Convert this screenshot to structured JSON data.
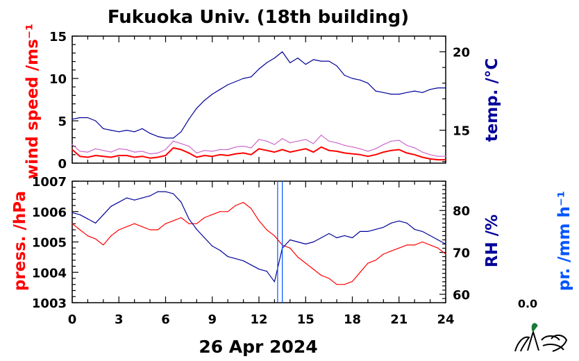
{
  "title": "Fukuoka Univ. (18th building)",
  "date_label": "26 Apr 2024",
  "precip_total": "0.0",
  "colors": {
    "wind": "#ff0000",
    "wind_gust": "#cc66cc",
    "temp": "#000099",
    "press": "#ff0000",
    "rh": "#000099",
    "precip": "#0055ff",
    "axis": "#000000"
  },
  "chart_data": [
    {
      "type": "line",
      "panel": "upper",
      "ylabel": "wind speed /ms⁻¹",
      "y2label": "temp. /°C",
      "ylim": [
        0,
        15
      ],
      "y_ticks": [
        "0",
        "5",
        "10",
        "15"
      ],
      "y2lim": [
        12.9,
        21.0
      ],
      "y2_ticks": [
        "15",
        "20"
      ],
      "xlim": [
        0,
        24
      ],
      "series": [
        {
          "axis": "left",
          "x": [
            0,
            0.5,
            1,
            1.5,
            2,
            2.5,
            3,
            3.5,
            4,
            4.5,
            5,
            5.5,
            6,
            6.5,
            7,
            7.5,
            8,
            8.5,
            9,
            9.5,
            10,
            10.5,
            11,
            11.5,
            12,
            12.5,
            13,
            13.5,
            14,
            14.5,
            15,
            15.5,
            16,
            16.5,
            17,
            17.5,
            18,
            18.5,
            19,
            19.5,
            20,
            20.5,
            21,
            21.5,
            22,
            22.5,
            23,
            23.5,
            24
          ],
          "values": [
            1.6,
            0.8,
            0.7,
            0.9,
            0.8,
            0.7,
            0.9,
            0.9,
            0.7,
            0.8,
            0.6,
            0.7,
            0.9,
            1.8,
            1.6,
            1.2,
            0.7,
            0.9,
            0.8,
            1.0,
            0.9,
            1.1,
            1.2,
            1.0,
            1.7,
            1.5,
            1.3,
            1.6,
            1.3,
            1.5,
            1.7,
            1.3,
            1.9,
            1.5,
            1.4,
            1.2,
            1.1,
            1.0,
            0.8,
            1.0,
            1.3,
            1.5,
            1.6,
            1.2,
            1.0,
            0.7,
            0.5,
            0.4,
            0.4
          ]
        },
        {
          "axis": "left",
          "x": [
            0,
            0.5,
            1,
            1.5,
            2,
            2.5,
            3,
            3.5,
            4,
            4.5,
            5,
            5.5,
            6,
            6.5,
            7,
            7.5,
            8,
            8.5,
            9,
            9.5,
            10,
            10.5,
            11,
            11.5,
            12,
            12.5,
            13,
            13.5,
            14,
            14.5,
            15,
            15.5,
            16,
            16.5,
            17,
            17.5,
            18,
            18.5,
            19,
            19.5,
            20,
            20.5,
            21,
            21.5,
            22,
            22.5,
            23,
            23.5,
            24
          ],
          "values": [
            2.2,
            1.4,
            1.3,
            1.7,
            1.5,
            1.3,
            1.7,
            1.6,
            1.3,
            1.4,
            1.1,
            1.2,
            1.6,
            2.6,
            2.3,
            2.0,
            1.2,
            1.5,
            1.4,
            1.6,
            1.6,
            1.9,
            2.0,
            1.8,
            2.8,
            2.6,
            2.2,
            2.9,
            2.4,
            2.6,
            2.8,
            2.3,
            3.3,
            2.6,
            2.4,
            2.1,
            1.9,
            1.7,
            1.4,
            1.7,
            2.2,
            2.6,
            2.7,
            2.1,
            1.8,
            1.3,
            1.0,
            0.8,
            0.8
          ]
        },
        {
          "axis": "right",
          "x": [
            0,
            0.5,
            1,
            1.5,
            2,
            2.5,
            3,
            3.5,
            4,
            4.5,
            5,
            5.5,
            6,
            6.5,
            7,
            7.5,
            8,
            8.5,
            9,
            9.5,
            10,
            10.5,
            11,
            11.5,
            12,
            12.5,
            13,
            13.5,
            14,
            14.5,
            15,
            15.5,
            16,
            16.5,
            17,
            17.5,
            18,
            18.5,
            19,
            19.5,
            20,
            20.5,
            21,
            21.5,
            22,
            22.5,
            23,
            23.5,
            24
          ],
          "values": [
            15.7,
            15.8,
            15.8,
            15.6,
            15.1,
            15.0,
            14.9,
            15.0,
            14.9,
            15.1,
            14.8,
            14.6,
            14.5,
            14.5,
            14.9,
            15.7,
            16.4,
            16.9,
            17.3,
            17.6,
            17.9,
            18.1,
            18.3,
            18.4,
            18.9,
            19.3,
            19.6,
            20.0,
            19.3,
            19.6,
            19.2,
            19.5,
            19.4,
            19.4,
            19.1,
            18.5,
            18.3,
            18.2,
            18.0,
            17.5,
            17.4,
            17.3,
            17.3,
            17.4,
            17.5,
            17.4,
            17.6,
            17.7,
            17.7
          ]
        }
      ]
    },
    {
      "type": "line",
      "panel": "lower",
      "ylabel": "press. /hPa",
      "y2label": "RH /%",
      "y3label": "pr. /mm h⁻¹",
      "ylim": [
        1003,
        1007
      ],
      "y_ticks": [
        "1003",
        "1004",
        "1005",
        "1006",
        "1007"
      ],
      "y2lim": [
        58,
        87
      ],
      "y2_ticks": [
        "60",
        "70",
        "80"
      ],
      "xlim": [
        0,
        24
      ],
      "x_ticks": [
        "0",
        "3",
        "6",
        "9",
        "12",
        "15",
        "18",
        "21",
        "24"
      ],
      "series": [
        {
          "axis": "left",
          "x": [
            0,
            0.5,
            1,
            1.5,
            2,
            2.5,
            3,
            3.5,
            4,
            4.5,
            5,
            5.5,
            6,
            6.5,
            7,
            7.5,
            8,
            8.5,
            9,
            9.5,
            10,
            10.5,
            11,
            11.5,
            12,
            12.5,
            13,
            13.5,
            14,
            14.5,
            15,
            15.5,
            16,
            16.5,
            17,
            17.5,
            18,
            18.5,
            19,
            19.5,
            20,
            20.5,
            21,
            21.5,
            22,
            22.5,
            23,
            23.5,
            24
          ],
          "values": [
            1005.6,
            1005.4,
            1005.2,
            1005.1,
            1004.9,
            1005.2,
            1005.4,
            1005.5,
            1005.6,
            1005.5,
            1005.4,
            1005.4,
            1005.6,
            1005.7,
            1005.8,
            1005.6,
            1005.6,
            1005.8,
            1005.9,
            1006.0,
            1006.0,
            1006.2,
            1006.3,
            1006.1,
            1005.7,
            1005.4,
            1005.2,
            1004.9,
            1004.8,
            1004.5,
            1004.3,
            1004.1,
            1003.9,
            1003.8,
            1003.6,
            1003.6,
            1003.7,
            1004.0,
            1004.3,
            1004.4,
            1004.6,
            1004.7,
            1004.8,
            1004.9,
            1004.9,
            1005.0,
            1004.9,
            1004.8,
            1004.6
          ]
        },
        {
          "axis": "right",
          "x": [
            0,
            0.5,
            1,
            1.5,
            2,
            2.5,
            3,
            3.5,
            4,
            4.5,
            5,
            5.5,
            6,
            6.5,
            7,
            7.5,
            8,
            8.5,
            9,
            9.5,
            10,
            10.5,
            11,
            11.5,
            12,
            12.5,
            13,
            13.5,
            14,
            14.5,
            15,
            15.5,
            16,
            16.5,
            17,
            17.5,
            18,
            18.5,
            19,
            19.5,
            20,
            20.5,
            21,
            21.5,
            22,
            22.5,
            23,
            23.5,
            24
          ],
          "values": [
            79.5,
            79.0,
            78.0,
            77.0,
            79.0,
            81.0,
            82.0,
            83.0,
            82.5,
            83.0,
            83.5,
            84.5,
            84.5,
            84.0,
            82.0,
            78.0,
            75.5,
            73.5,
            71.5,
            70.5,
            69.0,
            68.5,
            68.0,
            67.0,
            66.0,
            65.5,
            63.0,
            71.0,
            73.0,
            72.5,
            72.0,
            72.5,
            73.5,
            74.5,
            73.5,
            74.0,
            73.5,
            75.0,
            75.0,
            75.5,
            76.0,
            77.0,
            77.5,
            77.0,
            75.5,
            75.0,
            74.0,
            73.0,
            72.0
          ]
        },
        {
          "axis": "precip",
          "x": [
            13.2,
            13.5
          ],
          "values": [
            0.0,
            0.0
          ]
        }
      ]
    }
  ]
}
